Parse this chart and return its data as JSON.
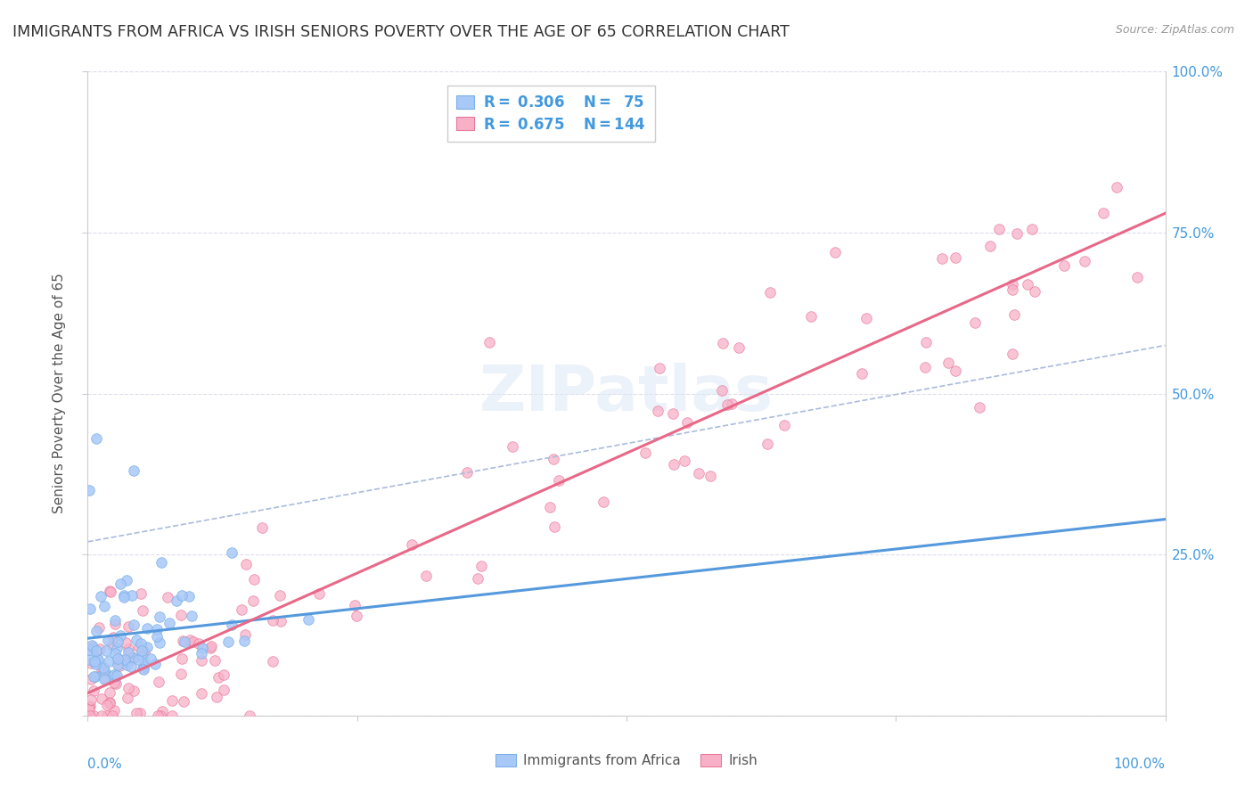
{
  "title": "IMMIGRANTS FROM AFRICA VS IRISH SENIORS POVERTY OVER THE AGE OF 65 CORRELATION CHART",
  "source": "Source: ZipAtlas.com",
  "ylabel": "Seniors Poverty Over the Age of 65",
  "legend_label1": "Immigrants from Africa",
  "legend_label2": "Irish",
  "color_africa": "#a8c8f8",
  "color_africa_edge": "#7ab0e8",
  "color_irish": "#f8b0c8",
  "color_irish_edge": "#e87898",
  "color_line_africa": "#5599dd",
  "color_line_irish": "#e86888",
  "color_text_blue": "#4499dd",
  "color_grid": "#ddddee",
  "background_color": "#ffffff"
}
